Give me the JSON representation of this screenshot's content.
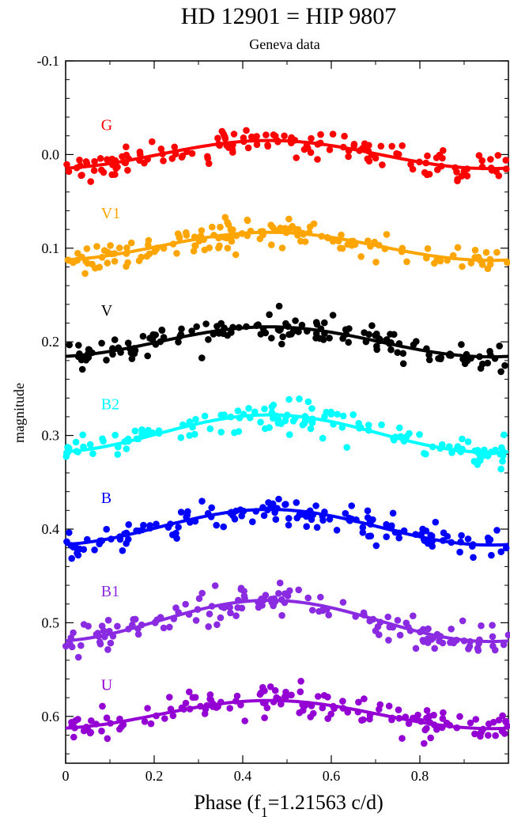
{
  "chart_data": {
    "type": "scatter",
    "title": "HD 12901 = HIP 9807",
    "subtitle": "Geneva data",
    "xlabel_main": "Phase (f",
    "xlabel_sub": "1",
    "xlabel_tail": "=1.21563 c/d)",
    "ylabel": "magnitude",
    "xlim": [
      0,
      1
    ],
    "ylim": [
      -0.1,
      0.65
    ],
    "y_inverted": true,
    "grid": false,
    "x_ticks": [
      0,
      0.2,
      0.4,
      0.6,
      0.8
    ],
    "x_tick_labels": [
      "0",
      "0.2",
      "0.4",
      "0.6",
      "0.8"
    ],
    "y_ticks": [
      -0.1,
      0.0,
      0.1,
      0.2,
      0.3,
      0.4,
      0.5,
      0.6
    ],
    "y_tick_labels": [
      "-0.1",
      "0.0",
      "0.1",
      "0.2",
      "0.3",
      "0.4",
      "0.5",
      "0.6"
    ],
    "fit_peak_phase": 0.46,
    "series": [
      {
        "name": "G",
        "color": "#ff0000",
        "mean": 0.0,
        "amplitude": 0.015,
        "label_x": 0.08,
        "label_y": -0.026
      },
      {
        "name": "V1",
        "color": "#ffa500",
        "mean": 0.098,
        "amplitude": 0.015,
        "label_x": 0.08,
        "label_y": 0.068
      },
      {
        "name": "V",
        "color": "#000000",
        "mean": 0.2,
        "amplitude": 0.016,
        "label_x": 0.08,
        "label_y": 0.172
      },
      {
        "name": "B2",
        "color": "#00ffff",
        "mean": 0.298,
        "amplitude": 0.02,
        "label_x": 0.08,
        "label_y": 0.272
      },
      {
        "name": "B",
        "color": "#0000ff",
        "mean": 0.398,
        "amplitude": 0.019,
        "label_x": 0.08,
        "label_y": 0.372
      },
      {
        "name": "B1",
        "color": "#8a2be2",
        "mean": 0.498,
        "amplitude": 0.022,
        "label_x": 0.08,
        "label_y": 0.472
      },
      {
        "name": "U",
        "color": "#9400d3",
        "mean": 0.598,
        "amplitude": 0.015,
        "label_x": 0.08,
        "label_y": 0.572
      }
    ]
  }
}
